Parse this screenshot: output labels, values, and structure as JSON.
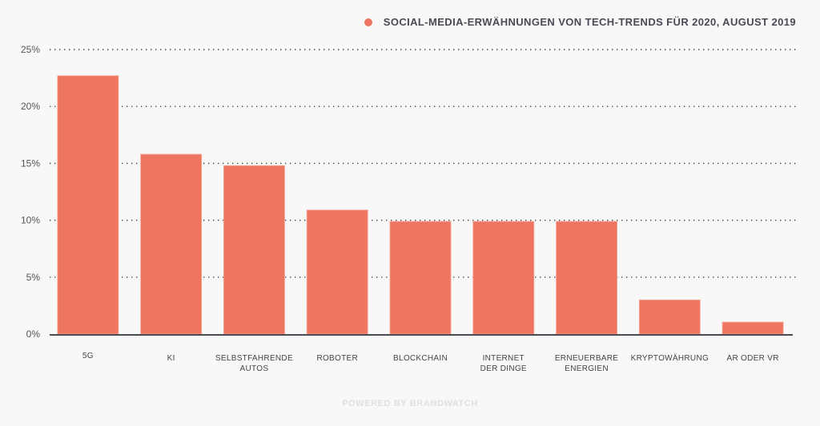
{
  "chart_data": {
    "type": "bar",
    "title": "SOCIAL-MEDIA-ERWÄHNUNGEN VON TECH-TRENDS FÜR 2020, AUGUST 2019",
    "xlabel": "",
    "ylabel": "",
    "categories": [
      [
        "5G"
      ],
      [
        "KI"
      ],
      [
        "SELBSTFAHRENDE",
        "AUTOS"
      ],
      [
        "ROBOTER"
      ],
      [
        "BLOCKCHAIN"
      ],
      [
        "INTERNET",
        "DER DINGE"
      ],
      [
        "ERNEUERBARE",
        "ENERGIEN"
      ],
      [
        "KRYPTOWÄHRUNG"
      ],
      [
        "AR ODER VR"
      ]
    ],
    "series": [
      {
        "name": "SOCIAL-MEDIA-ERWÄHNUNGEN VON TECH-TRENDS FÜR 2020, AUGUST 2019",
        "values": [
          22.7,
          15.8,
          14.8,
          10.9,
          9.9,
          9.9,
          9.9,
          3.0,
          1.05
        ],
        "color": "#ee7660"
      }
    ],
    "ylim": [
      0,
      25
    ],
    "yticks": [
      0,
      5,
      10,
      15,
      20,
      25
    ],
    "ytick_labels": [
      "0%",
      "5%",
      "10%",
      "15%",
      "20%",
      "25%"
    ],
    "grid": true,
    "legend": "top-right"
  },
  "legend": {
    "label": "SOCIAL-MEDIA-ERWÄHNUNGEN VON TECH-TRENDS FÜR 2020, AUGUST 2019",
    "color": "#ee7660"
  },
  "footer": {
    "text": "POWERED BY BRANDWATCH"
  }
}
